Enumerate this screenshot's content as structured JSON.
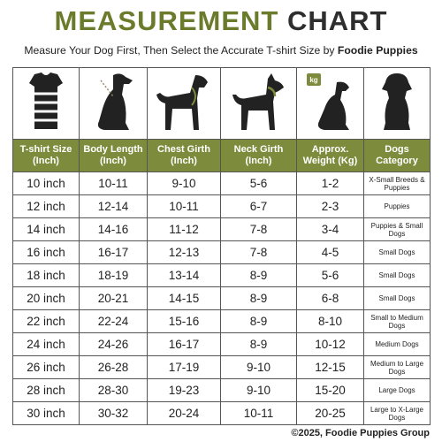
{
  "title": {
    "part1": "MEASUREMENT",
    "part2": "CHART"
  },
  "subtitle": {
    "text": "Measure Your Dog First, Then Select the Accurate T-shirt Size by",
    "brand": "Foodie Puppies"
  },
  "table": {
    "headers": [
      "T-shirt Size\n(Inch)",
      "Body Length\n(Inch)",
      "Chest Girth\n(Inch)",
      "Neck Girth\n(Inch)",
      "Approx.\nWeight (Kg)",
      "Dogs\nCategory"
    ],
    "rows": [
      [
        "10 inch",
        "10-11",
        "9-10",
        "5-6",
        "1-2",
        "X-Small Breeds & Puppies"
      ],
      [
        "12 inch",
        "12-14",
        "10-11",
        "6-7",
        "2-3",
        "Puppies"
      ],
      [
        "14 inch",
        "14-16",
        "11-12",
        "7-8",
        "3-4",
        "Puppies & Small Dogs"
      ],
      [
        "16 inch",
        "16-17",
        "12-13",
        "7-8",
        "4-5",
        "Small Dogs"
      ],
      [
        "18 inch",
        "18-19",
        "13-14",
        "8-9",
        "5-6",
        "Small Dogs"
      ],
      [
        "20 inch",
        "20-21",
        "14-15",
        "8-9",
        "6-8",
        "Small Dogs"
      ],
      [
        "22 inch",
        "22-24",
        "15-16",
        "8-9",
        "8-10",
        "Small to Medium Dogs"
      ],
      [
        "24 inch",
        "24-26",
        "16-17",
        "8-9",
        "10-12",
        "Medium Dogs"
      ],
      [
        "26 inch",
        "26-28",
        "17-19",
        "9-10",
        "12-15",
        "Medium to Large Dogs"
      ],
      [
        "28 inch",
        "28-30",
        "19-23",
        "9-10",
        "15-20",
        "Large Dogs"
      ],
      [
        "30 inch",
        "30-32",
        "20-24",
        "10-11",
        "20-25",
        "Large to X-Large Dogs"
      ]
    ]
  },
  "icon_label": "kg",
  "footer": "©2025, Foodie Puppies Group"
}
